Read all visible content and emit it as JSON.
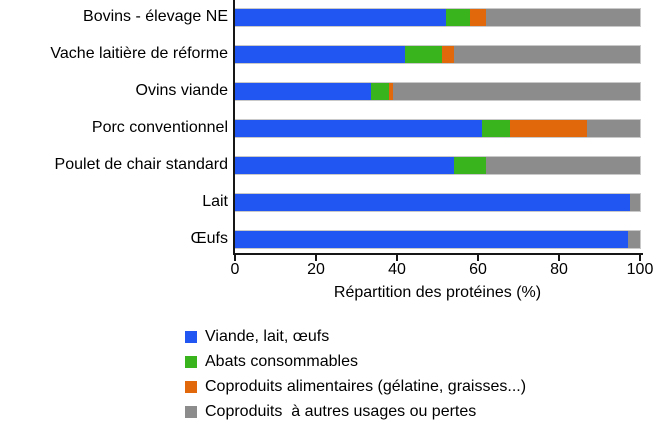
{
  "chart_data": {
    "type": "bar",
    "orientation": "horizontal",
    "stacked": true,
    "title": "",
    "xlabel": "Répartition des protéines (%)",
    "ylabel": "",
    "xlim": [
      0,
      100
    ],
    "xticks": [
      "0",
      "20",
      "40",
      "60",
      "80",
      "100"
    ],
    "grid": false,
    "legend_position": "bottom-left",
    "categories": [
      "Bovins - élevage NE",
      "Vache laitière de réforme",
      "Ovins viande",
      "Porc conventionnel",
      "Poulet de chair standard",
      "Lait",
      "Œufs"
    ],
    "series": [
      {
        "name": "Viande, lait, œufs",
        "color": "#2256F3",
        "values": [
          52,
          42,
          33.5,
          61,
          54,
          97.5,
          97
        ]
      },
      {
        "name": "Abats consommables",
        "color": "#3AB41C",
        "values": [
          6,
          9,
          4.5,
          7,
          8,
          0,
          0
        ]
      },
      {
        "name": "Coproduits alimentaires (gélatine, graisses...)",
        "color": "#E2690B",
        "values": [
          4,
          3,
          1,
          19,
          0,
          0,
          0
        ]
      },
      {
        "name": "Coproduits  à autres usages ou pertes",
        "color": "#8C8C8C",
        "values": [
          38,
          46,
          61,
          13,
          38,
          2.5,
          3
        ]
      }
    ]
  },
  "colors": {
    "background": "#FFFFFF",
    "axis": "#161616",
    "text": "#000000",
    "bar_border": "#C9C9C9"
  }
}
